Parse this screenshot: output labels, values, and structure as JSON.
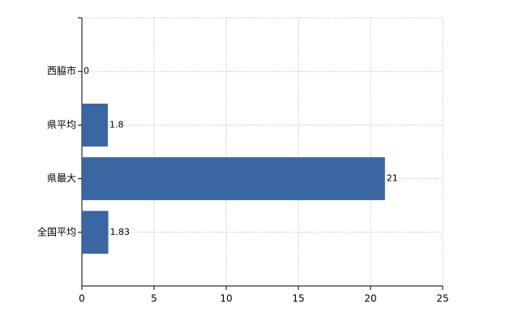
{
  "chart_data": {
    "type": "hbar",
    "categories": [
      "西脇市",
      "県平均",
      "県最大",
      "全国平均"
    ],
    "values": [
      0,
      1.8,
      21,
      1.83
    ],
    "color": "#3a67a2",
    "xlim": [
      0,
      25
    ],
    "xticks": [
      0,
      5,
      10,
      15,
      20,
      25
    ],
    "grid": true
  }
}
